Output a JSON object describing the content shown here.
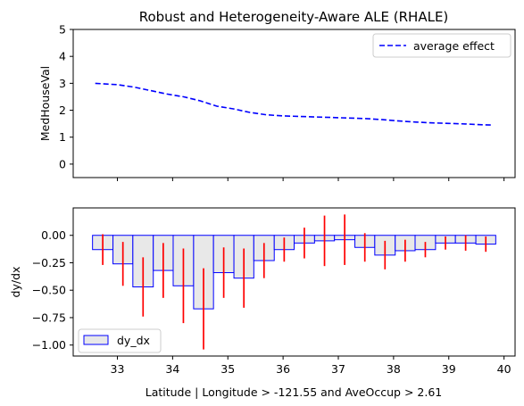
{
  "chart_data": [
    {
      "type": "line",
      "title": "Robust and Heterogeneity-Aware ALE (RHALE)",
      "ylabel": "MedHouseVal",
      "xlabel": "",
      "xlim": [
        32.2,
        40.2
      ],
      "ylim": [
        -0.5,
        5
      ],
      "yticks": [
        0,
        1,
        2,
        3,
        4,
        5
      ],
      "legend": "top-right",
      "grid": false,
      "series": [
        {
          "name": "average effect",
          "color": "#0000ff",
          "style": "dashed",
          "x": [
            32.6,
            33.0,
            33.3,
            33.6,
            33.9,
            34.2,
            34.5,
            34.8,
            35.1,
            35.4,
            35.7,
            36.0,
            36.3,
            36.6,
            36.9,
            37.2,
            37.5,
            37.8,
            38.1,
            38.4,
            38.7,
            39.0,
            39.3,
            39.6,
            39.8
          ],
          "y": [
            3.0,
            2.95,
            2.86,
            2.73,
            2.6,
            2.5,
            2.35,
            2.15,
            2.05,
            1.92,
            1.83,
            1.79,
            1.77,
            1.75,
            1.73,
            1.71,
            1.69,
            1.65,
            1.6,
            1.56,
            1.53,
            1.51,
            1.49,
            1.46,
            1.45
          ]
        }
      ]
    },
    {
      "type": "bar",
      "title": "",
      "ylabel": "dy/dx",
      "xlabel": "Latitude | Longitude > -121.55 and AveOccup > 2.61",
      "xlim": [
        32.2,
        40.2
      ],
      "ylim": [
        -1.1,
        0.25
      ],
      "xticks": [
        33,
        34,
        35,
        36,
        37,
        38,
        39,
        40
      ],
      "yticks": [
        -1.0,
        -0.75,
        -0.5,
        -0.25,
        0.0
      ],
      "legend": "bottom-left",
      "bar_color": "#e8e8e8",
      "bar_edge_color": "#0000ff",
      "error_color": "#ff0000",
      "series": [
        {
          "name": "dy_dx",
          "bins": [
            {
              "x0": 32.55,
              "x1": 32.92,
              "value": -0.13,
              "err": 0.14
            },
            {
              "x0": 32.92,
              "x1": 33.28,
              "value": -0.26,
              "err": 0.2
            },
            {
              "x0": 33.28,
              "x1": 33.65,
              "value": -0.47,
              "err": 0.27
            },
            {
              "x0": 33.65,
              "x1": 34.01,
              "value": -0.32,
              "err": 0.25
            },
            {
              "x0": 34.01,
              "x1": 34.38,
              "value": -0.46,
              "err": 0.34
            },
            {
              "x0": 34.38,
              "x1": 34.74,
              "value": -0.67,
              "err": 0.37
            },
            {
              "x0": 34.74,
              "x1": 35.11,
              "value": -0.34,
              "err": 0.23
            },
            {
              "x0": 35.11,
              "x1": 35.47,
              "value": -0.39,
              "err": 0.27
            },
            {
              "x0": 35.47,
              "x1": 35.84,
              "value": -0.23,
              "err": 0.16
            },
            {
              "x0": 35.84,
              "x1": 36.2,
              "value": -0.13,
              "err": 0.11
            },
            {
              "x0": 36.2,
              "x1": 36.57,
              "value": -0.07,
              "err": 0.14
            },
            {
              "x0": 36.57,
              "x1": 36.93,
              "value": -0.05,
              "err": 0.23
            },
            {
              "x0": 36.93,
              "x1": 37.3,
              "value": -0.04,
              "err": 0.23
            },
            {
              "x0": 37.3,
              "x1": 37.66,
              "value": -0.11,
              "err": 0.13
            },
            {
              "x0": 37.66,
              "x1": 38.03,
              "value": -0.18,
              "err": 0.13
            },
            {
              "x0": 38.03,
              "x1": 38.39,
              "value": -0.14,
              "err": 0.1
            },
            {
              "x0": 38.39,
              "x1": 38.76,
              "value": -0.13,
              "err": 0.07
            },
            {
              "x0": 38.76,
              "x1": 39.12,
              "value": -0.07,
              "err": 0.06
            },
            {
              "x0": 39.12,
              "x1": 39.49,
              "value": -0.07,
              "err": 0.07
            },
            {
              "x0": 39.49,
              "x1": 39.85,
              "value": -0.08,
              "err": 0.07
            }
          ]
        }
      ]
    }
  ]
}
